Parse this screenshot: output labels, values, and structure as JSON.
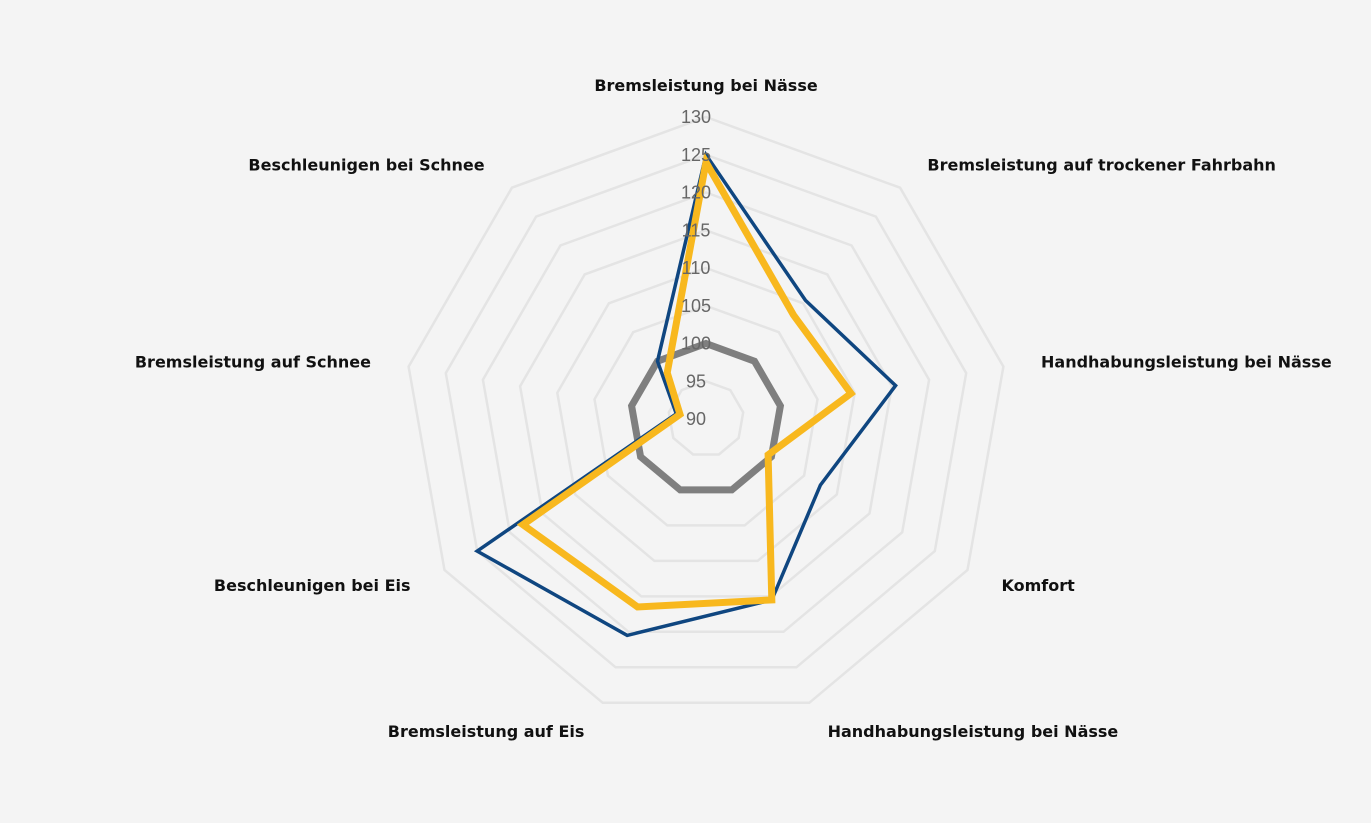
{
  "chart_data": {
    "type": "radar",
    "title": "",
    "categories": [
      "Bremsleistung bei Nässe",
      "Bremsleistung auf trockener Fahrbahn",
      "Handhabungsleistung bei Nässe",
      "Komfort",
      "Handhabungsleistung bei Nässe",
      "Bremsleistung auf Eis",
      "Beschleunigen bei Eis",
      "Bremsleistung auf Schnee",
      "Beschleunigen bei Schnee"
    ],
    "ticks": [
      90,
      95,
      100,
      105,
      110,
      115,
      120,
      125,
      130
    ],
    "range": [
      90,
      130
    ],
    "grid": true,
    "legend": "none",
    "series": [
      {
        "color": "#7f7f7f",
        "line_width": 7,
        "values": [
          100,
          100,
          100,
          100,
          100,
          100,
          100,
          100,
          100
        ]
      },
      {
        "color": "#0f4680",
        "line_width": 3.5,
        "values": [
          125,
          110.5,
          115.5,
          107.5,
          115.5,
          120.5,
          125,
          94,
          100
        ]
      },
      {
        "color": "#f8b81e",
        "line_width": 7,
        "values": [
          124,
          108,
          109.5,
          99.5,
          115.5,
          116.5,
          118,
          93.5,
          98
        ]
      }
    ]
  }
}
